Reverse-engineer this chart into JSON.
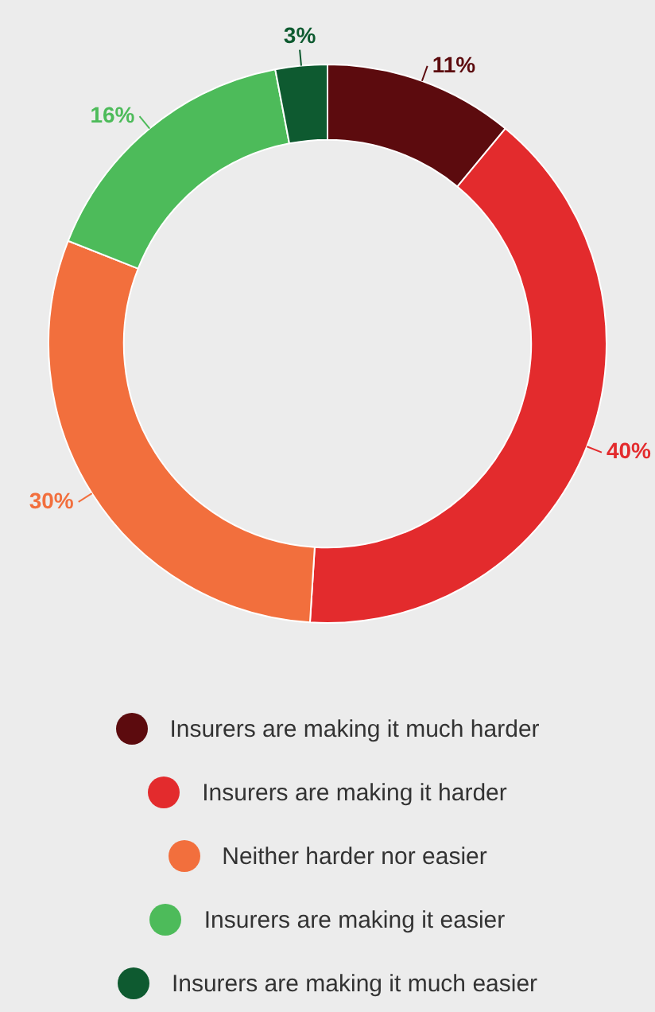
{
  "chart_data": {
    "type": "donut",
    "categories": [
      "Insurers are making it much harder",
      "Insurers are making it harder",
      "Neither harder nor easier",
      "Insurers are making it easier",
      "Insurers are making it much easier"
    ],
    "values": [
      11,
      40,
      30,
      16,
      3
    ],
    "value_labels": [
      "11%",
      "40%",
      "30%",
      "16%",
      "3%"
    ],
    "colors": [
      "#5c0b0e",
      "#e32b2d",
      "#f26f3d",
      "#4dbb5a",
      "#0e5a30"
    ],
    "legend": "bottom"
  }
}
